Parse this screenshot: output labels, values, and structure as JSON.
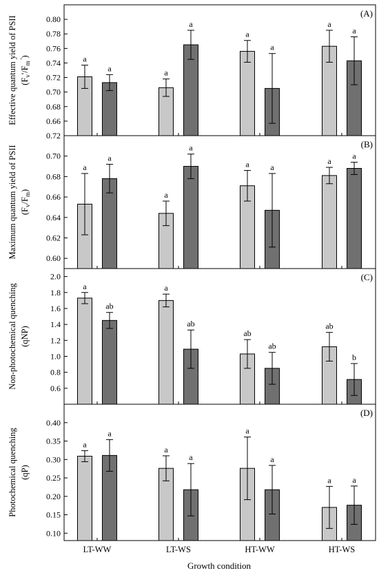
{
  "figure": {
    "xlabel": "Growth condition",
    "categories": [
      "LT-WW",
      "LT-WS",
      "HT-WW",
      "HT-WS"
    ],
    "colors": {
      "light_bar": "#c8c8c8",
      "dark_bar": "#707070",
      "frame": "#000000"
    }
  },
  "chart_data": [
    {
      "type": "bar",
      "panel_label": "(A)",
      "ylabel_lines": [
        "Effective quantum yield of PSII",
        "(Fv'/Fm')"
      ],
      "ylim": [
        0.64,
        0.82
      ],
      "yticks": [
        0.66,
        0.68,
        0.7,
        0.72,
        0.74,
        0.76,
        0.78,
        0.8
      ],
      "tick_decimals": 2,
      "categories": [
        "LT-WW",
        "LT-WS",
        "HT-WW",
        "HT-WS"
      ],
      "series": [
        {
          "color_key": "light_bar",
          "values": [
            0.721,
            0.706,
            0.756,
            0.763
          ],
          "errors": [
            0.016,
            0.012,
            0.015,
            0.022
          ],
          "letters": [
            "a",
            "a",
            "a",
            "a"
          ]
        },
        {
          "color_key": "dark_bar",
          "values": [
            0.713,
            0.765,
            0.705,
            0.743
          ],
          "errors": [
            0.011,
            0.02,
            0.048,
            0.033
          ],
          "letters": [
            "a",
            "a",
            "a",
            "a"
          ]
        }
      ]
    },
    {
      "type": "bar",
      "panel_label": "(B)",
      "ylabel_lines": [
        "Maximum quantum yield of PSII",
        "(Fv/Fm)"
      ],
      "ylim": [
        0.59,
        0.72
      ],
      "yticks": [
        0.6,
        0.62,
        0.64,
        0.66,
        0.68,
        0.7,
        0.72
      ],
      "tick_decimals": 2,
      "categories": [
        "LT-WW",
        "LT-WS",
        "HT-WW",
        "HT-WS"
      ],
      "series": [
        {
          "color_key": "light_bar",
          "values": [
            0.653,
            0.644,
            0.671,
            0.681
          ],
          "errors": [
            0.03,
            0.012,
            0.015,
            0.008
          ],
          "letters": [
            "a",
            "a",
            "a",
            "a"
          ]
        },
        {
          "color_key": "dark_bar",
          "values": [
            0.678,
            0.69,
            0.647,
            0.688
          ],
          "errors": [
            0.014,
            0.012,
            0.036,
            0.006
          ],
          "letters": [
            "a",
            "a",
            "a",
            "a"
          ]
        }
      ]
    },
    {
      "type": "bar",
      "panel_label": "(C)",
      "ylabel_lines": [
        "Non-photochemical quenching",
        "(qNP)"
      ],
      "ylim": [
        0.4,
        2.1
      ],
      "yticks": [
        0.6,
        0.8,
        1.0,
        1.2,
        1.4,
        1.6,
        1.8,
        2.0
      ],
      "tick_decimals": 1,
      "categories": [
        "LT-WW",
        "LT-WS",
        "HT-WW",
        "HT-WS"
      ],
      "series": [
        {
          "color_key": "light_bar",
          "values": [
            1.73,
            1.7,
            1.03,
            1.12
          ],
          "errors": [
            0.07,
            0.08,
            0.18,
            0.18
          ],
          "letters": [
            "a",
            "a",
            "ab",
            "ab"
          ]
        },
        {
          "color_key": "dark_bar",
          "values": [
            1.45,
            1.09,
            0.85,
            0.71
          ],
          "errors": [
            0.1,
            0.24,
            0.2,
            0.2
          ],
          "letters": [
            "ab",
            "ab",
            "ab",
            "b"
          ]
        }
      ]
    },
    {
      "type": "bar",
      "panel_label": "(D)",
      "ylabel_lines": [
        "Photochemical quenching",
        "(qP)"
      ],
      "ylim": [
        0.08,
        0.45
      ],
      "yticks": [
        0.1,
        0.15,
        0.2,
        0.25,
        0.3,
        0.35,
        0.4
      ],
      "tick_decimals": 2,
      "categories": [
        "LT-WW",
        "LT-WS",
        "HT-WW",
        "HT-WS"
      ],
      "series": [
        {
          "color_key": "light_bar",
          "values": [
            0.309,
            0.276,
            0.276,
            0.17
          ],
          "errors": [
            0.015,
            0.034,
            0.085,
            0.057
          ],
          "letters": [
            "a",
            "a",
            "a",
            "a"
          ]
        },
        {
          "color_key": "dark_bar",
          "values": [
            0.311,
            0.218,
            0.218,
            0.176
          ],
          "errors": [
            0.043,
            0.071,
            0.066,
            0.052
          ],
          "letters": [
            "a",
            "a",
            "a",
            "a"
          ]
        }
      ]
    }
  ]
}
